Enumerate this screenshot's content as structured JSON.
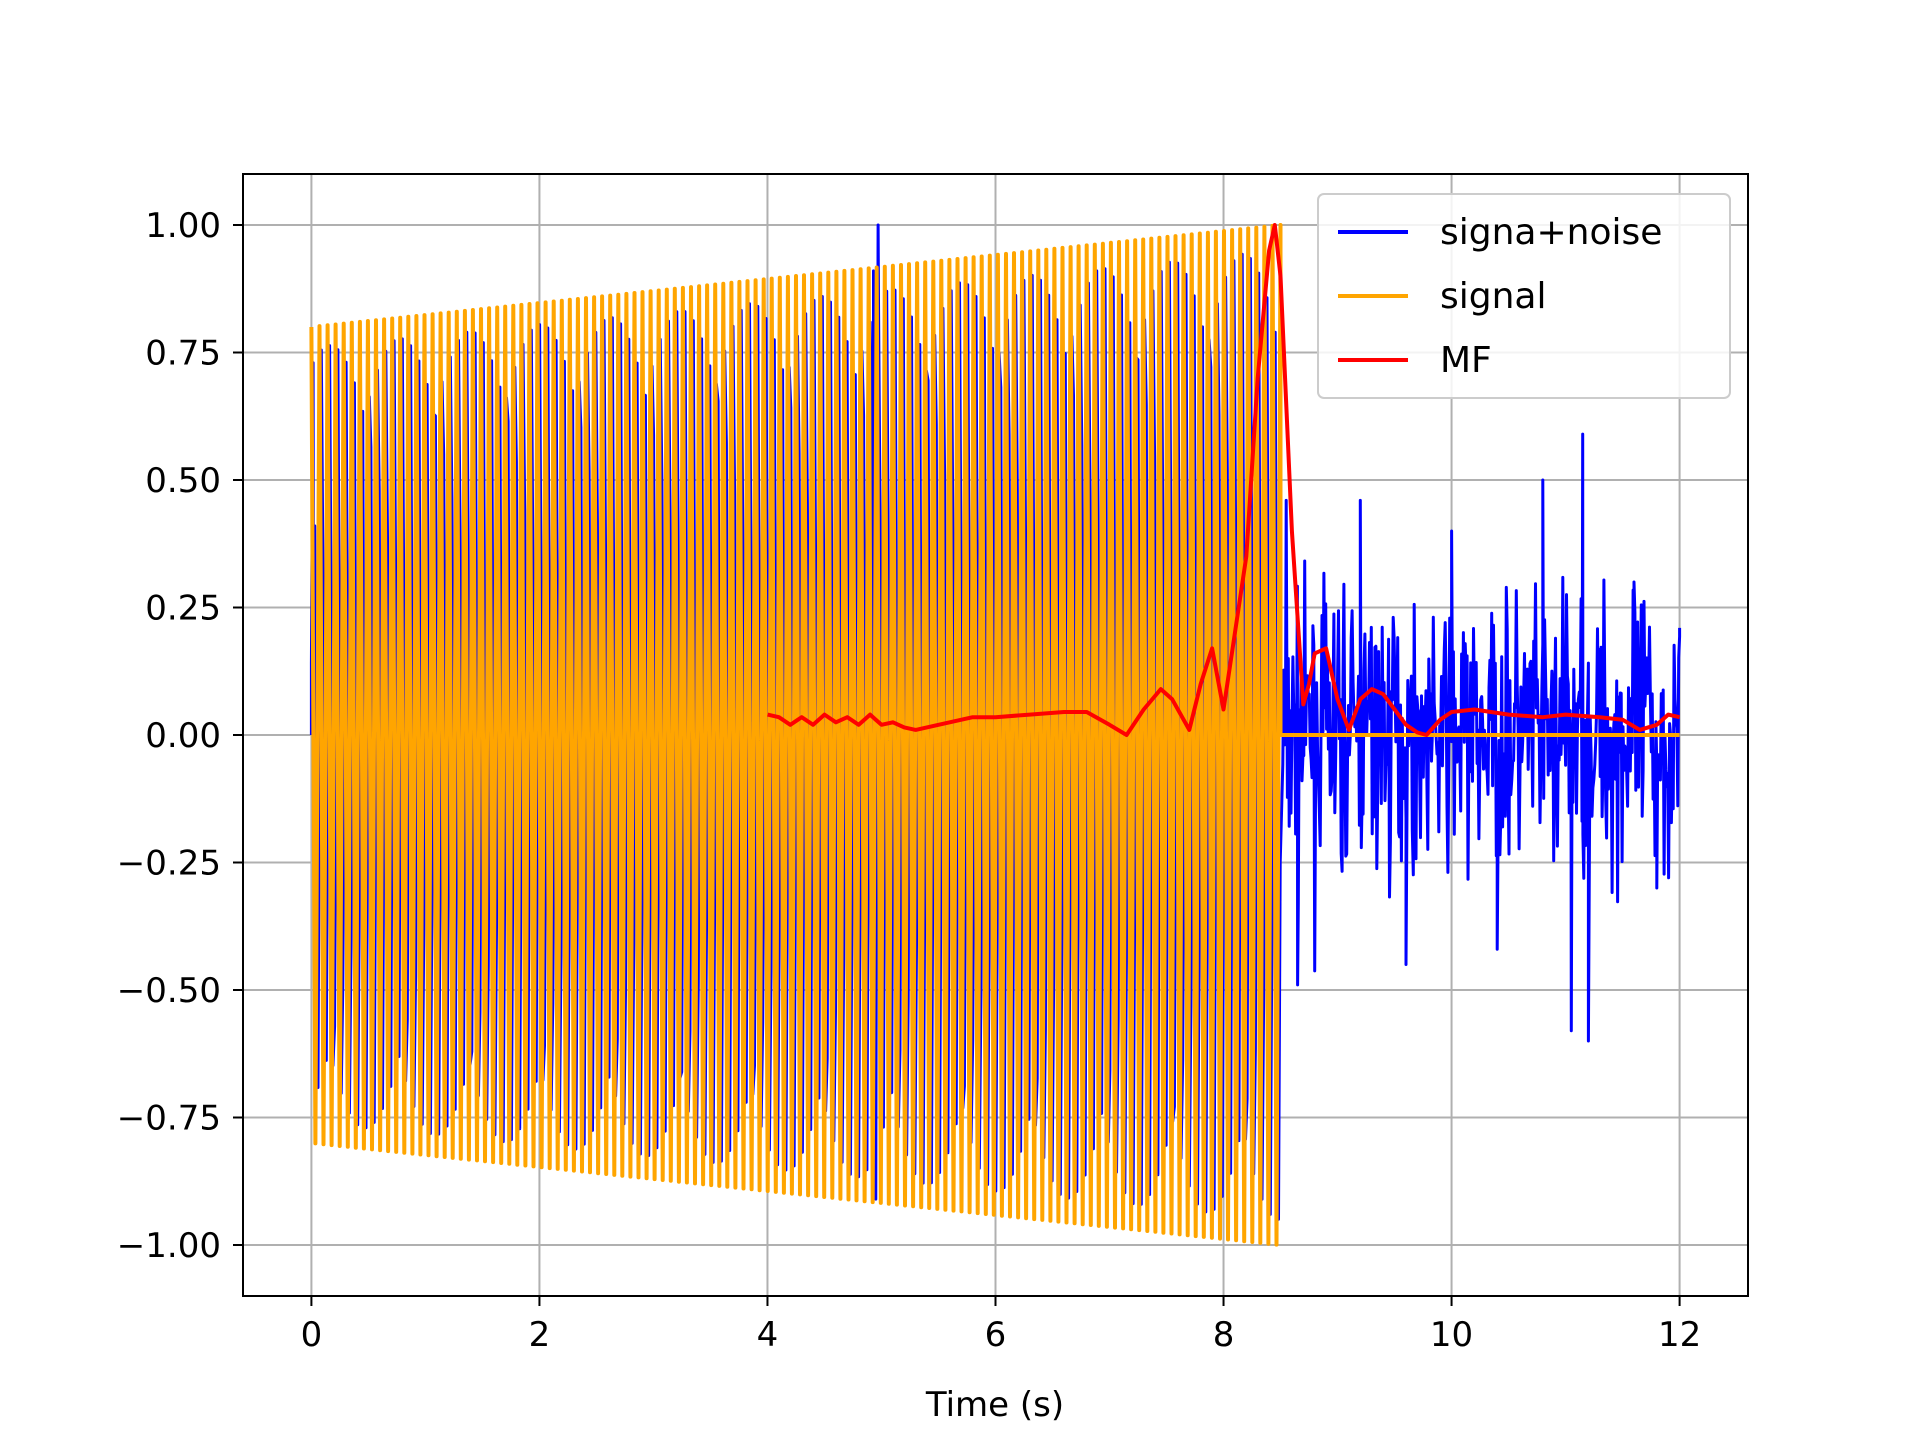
{
  "chart_data": {
    "type": "line",
    "title": "",
    "xlabel": "Time (s)",
    "ylabel": "",
    "xlim": [
      -0.6,
      12.6
    ],
    "ylim": [
      -1.1,
      1.1
    ],
    "grid": true,
    "legend_position": "upper-right",
    "x_ticks": [
      0,
      2,
      4,
      6,
      8,
      10,
      12
    ],
    "x_tick_labels": [
      "0",
      "2",
      "4",
      "6",
      "8",
      "10",
      "12"
    ],
    "y_ticks": [
      1.0,
      0.75,
      0.5,
      0.25,
      0.0,
      -0.25,
      -0.5,
      -0.75,
      -1.0
    ],
    "y_tick_labels": [
      "1.00",
      "0.75",
      "0.50",
      "0.25",
      "0.00",
      "−0.25",
      "−0.50",
      "−0.75",
      "−1.00"
    ],
    "series": [
      {
        "name": "signa+noise",
        "color": "#0000ff",
        "description_points": [
          [
            0.0,
            0.14
          ],
          [
            0.02,
            -0.17
          ],
          [
            4.93,
            0.91
          ],
          [
            4.97,
            1.0
          ],
          [
            4.95,
            -0.91
          ],
          [
            8.55,
            0.46
          ],
          [
            8.65,
            -0.49
          ],
          [
            9.2,
            0.46
          ],
          [
            9.6,
            -0.45
          ],
          [
            10.0,
            0.4
          ],
          [
            10.4,
            -0.42
          ],
          [
            10.8,
            0.5
          ],
          [
            11.05,
            -0.58
          ],
          [
            11.15,
            0.59
          ],
          [
            11.2,
            -0.6
          ],
          [
            11.6,
            0.3
          ],
          [
            11.8,
            -0.3
          ],
          [
            12.0,
            0.21
          ]
        ]
      },
      {
        "name": "signal",
        "color": "#ffa500",
        "amplitude_start": 0.8,
        "amplitude_end": 1.0,
        "start_time": 0.0,
        "end_time": 8.5,
        "after_end_value": 0.0,
        "cycles": 120
      },
      {
        "name": "MF",
        "color": "#ff0000",
        "x": [
          4.0,
          4.1,
          4.2,
          4.3,
          4.4,
          4.5,
          4.6,
          4.7,
          4.8,
          4.9,
          4.95,
          5.0,
          5.1,
          5.2,
          5.3,
          5.5,
          5.8,
          6.0,
          6.3,
          6.6,
          6.8,
          7.0,
          7.15,
          7.3,
          7.45,
          7.55,
          7.7,
          7.8,
          7.9,
          8.0,
          8.1,
          8.2,
          8.3,
          8.4,
          8.45,
          8.5,
          8.6,
          8.7,
          8.75,
          8.8,
          8.9,
          8.95,
          9.0,
          9.1,
          9.2,
          9.3,
          9.4,
          9.5,
          9.6,
          9.7,
          9.78,
          9.9,
          10.0,
          10.2,
          10.5,
          10.8,
          11.0,
          11.3,
          11.5,
          11.65,
          11.8,
          11.9,
          12.0
        ],
        "y": [
          0.04,
          0.035,
          0.02,
          0.035,
          0.02,
          0.04,
          0.025,
          0.035,
          0.02,
          0.04,
          0.03,
          0.02,
          0.025,
          0.015,
          0.01,
          0.02,
          0.035,
          0.035,
          0.04,
          0.045,
          0.045,
          0.02,
          0.0,
          0.05,
          0.09,
          0.07,
          0.01,
          0.1,
          0.17,
          0.05,
          0.2,
          0.35,
          0.7,
          0.95,
          1.0,
          0.9,
          0.4,
          0.06,
          0.1,
          0.16,
          0.17,
          0.12,
          0.07,
          0.01,
          0.07,
          0.09,
          0.08,
          0.05,
          0.02,
          0.005,
          0.0,
          0.03,
          0.045,
          0.05,
          0.04,
          0.035,
          0.04,
          0.035,
          0.03,
          0.01,
          0.02,
          0.04,
          0.035
        ]
      }
    ]
  }
}
